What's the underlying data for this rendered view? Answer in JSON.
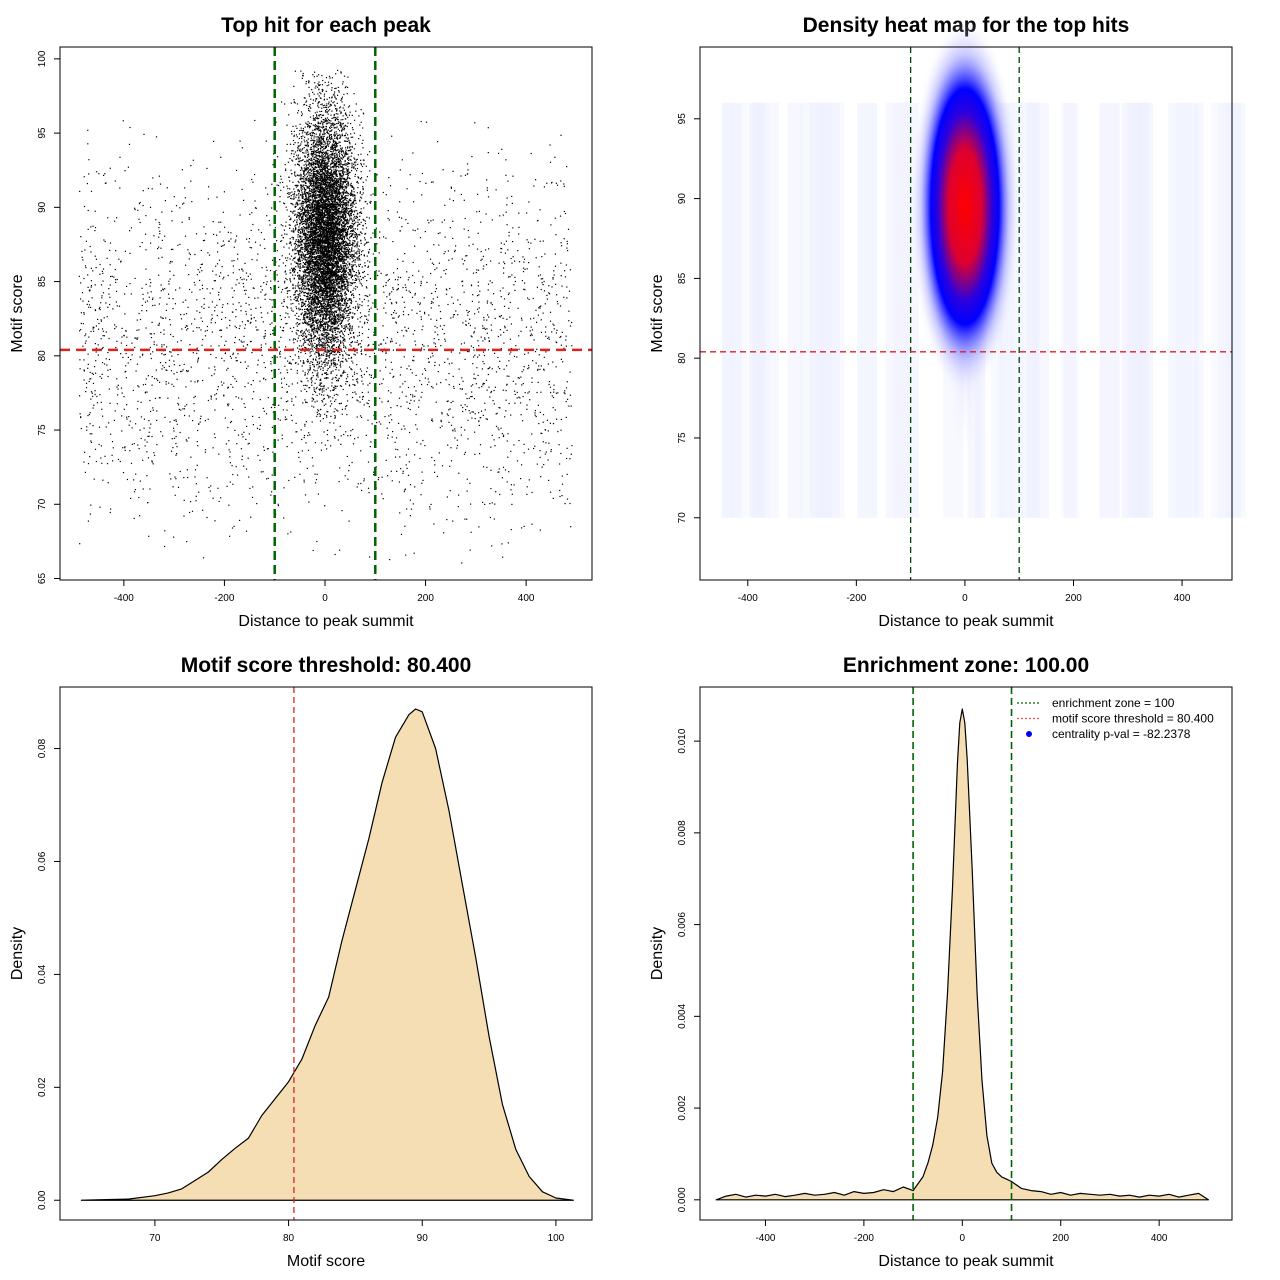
{
  "chart_data": [
    {
      "type": "scatter",
      "title": "Top hit for each peak",
      "xlabel": "Distance to peak summit",
      "ylabel": "Motif score",
      "xlim": [
        -527,
        531
      ],
      "ylim": [
        64.9,
        100.8
      ],
      "xticks": [
        -400,
        -200,
        0,
        200,
        400
      ],
      "yticks": [
        65,
        70,
        75,
        80,
        85,
        90,
        95,
        100
      ],
      "vlines": [
        -100,
        100
      ],
      "vline_color": "#006400",
      "hline": 80.4,
      "hline_color": "#dd2222",
      "point_color": "#000000",
      "distribution": {
        "central": {
          "n": 9000,
          "x_mean": 0,
          "x_sd": 30,
          "y_mean": 88,
          "y_sd": 4.2
        },
        "background": {
          "n": 3000,
          "x_range": [
            -490,
            490
          ],
          "y_mean": 81,
          "y_sd": 6
        }
      }
    },
    {
      "type": "heatmap",
      "title": "Density heat map for the top hits",
      "xlabel": "Distance to peak summit",
      "ylabel": "Motif score",
      "xlim": [
        -488,
        492
      ],
      "ylim": [
        66.1,
        99.5
      ],
      "xticks": [
        -400,
        -200,
        0,
        200,
        400
      ],
      "yticks": [
        70,
        75,
        80,
        85,
        90,
        95
      ],
      "vlines": [
        -100,
        100
      ],
      "vline_color": "#004400",
      "hline": 80.4,
      "hline_color": "#dd2222",
      "peak": {
        "x": 0,
        "y": 89.5
      },
      "colors": [
        "#ffffff",
        "#0000ff",
        "#ff0000"
      ]
    },
    {
      "type": "area",
      "title": "Motif score threshold: 80.400",
      "xlabel": "Motif score",
      "ylabel": "Density",
      "xlim": [
        62.9,
        102.7
      ],
      "ylim": [
        -0.0035,
        0.0909
      ],
      "xticks": [
        70,
        80,
        90,
        100
      ],
      "yticks": [
        0.0,
        0.02,
        0.04,
        0.06,
        0.08
      ],
      "ytick_labels": [
        "0.00",
        "0.02",
        "0.04",
        "0.06",
        "0.08"
      ],
      "vline": 80.4,
      "vline_color": "#dd2222",
      "fill": "#f5deb3",
      "x": [
        64.5,
        66,
        68,
        70,
        71,
        72,
        73,
        74,
        75,
        76,
        77,
        78,
        79,
        80,
        81,
        82,
        83,
        84,
        85,
        86,
        87,
        88,
        89,
        89.5,
        90,
        91,
        92,
        93,
        94,
        95,
        96,
        97,
        98,
        99,
        100,
        101.3
      ],
      "y": [
        0,
        0.0001,
        0.0002,
        0.0008,
        0.0013,
        0.002,
        0.0035,
        0.005,
        0.0072,
        0.0092,
        0.011,
        0.015,
        0.018,
        0.021,
        0.025,
        0.031,
        0.036,
        0.046,
        0.055,
        0.064,
        0.074,
        0.082,
        0.086,
        0.087,
        0.0865,
        0.08,
        0.069,
        0.056,
        0.043,
        0.029,
        0.017,
        0.009,
        0.0042,
        0.0015,
        0.0004,
        0
      ]
    },
    {
      "type": "area",
      "title": "Enrichment zone: 100.00",
      "xlabel": "Distance to peak summit",
      "ylabel": "Density",
      "xlim": [
        -533,
        548
      ],
      "ylim": [
        -0.00044,
        0.01118
      ],
      "xticks": [
        -400,
        -200,
        0,
        200,
        400
      ],
      "yticks": [
        0,
        0.002,
        0.004,
        0.006,
        0.008,
        0.01
      ],
      "ytick_labels": [
        "0.000",
        "0.002",
        "0.004",
        "0.006",
        "0.008",
        "0.010"
      ],
      "vlines": [
        -100,
        100
      ],
      "vline_color": "#006400",
      "fill": "#f5deb3",
      "x": [
        -500,
        -480,
        -460,
        -440,
        -420,
        -400,
        -380,
        -360,
        -340,
        -320,
        -300,
        -280,
        -260,
        -240,
        -220,
        -200,
        -180,
        -160,
        -140,
        -120,
        -100,
        -80,
        -70,
        -60,
        -50,
        -40,
        -30,
        -20,
        -10,
        -5,
        0,
        5,
        10,
        20,
        30,
        40,
        50,
        60,
        70,
        80,
        90,
        100,
        120,
        140,
        160,
        180,
        200,
        220,
        240,
        260,
        280,
        300,
        320,
        340,
        360,
        380,
        400,
        420,
        440,
        460,
        480,
        500
      ],
      "y": [
        0,
        8e-05,
        0.00012,
        6e-05,
        0.0001,
        8e-05,
        0.00012,
        7e-05,
        0.0001,
        0.00014,
        0.0001,
        0.00012,
        0.00016,
        0.0001,
        0.00018,
        0.00014,
        0.00016,
        0.00022,
        0.00018,
        0.00028,
        0.0002,
        0.0005,
        0.0008,
        0.0012,
        0.0018,
        0.0028,
        0.0045,
        0.0068,
        0.0095,
        0.0104,
        0.0107,
        0.0104,
        0.0096,
        0.0072,
        0.0045,
        0.0026,
        0.0014,
        0.0008,
        0.0006,
        0.0005,
        0.00045,
        0.0004,
        0.00025,
        0.0002,
        0.00018,
        0.00012,
        0.00016,
        0.0001,
        0.00014,
        0.00012,
        0.0001,
        0.00012,
        8e-05,
        0.0001,
        6e-05,
        0.0001,
        8e-05,
        0.00012,
        6e-05,
        0.0001,
        0.00014,
        0
      ]
    }
  ],
  "legend": {
    "items": [
      {
        "label": "enrichment zone = 100",
        "color": "#006400",
        "style": "dotted-line"
      },
      {
        "label": "motif score threshold = 80.400",
        "color": "#ff4444",
        "style": "dotted-line"
      },
      {
        "label": "centrality p-val = -82.2378",
        "color": "#0000ff",
        "style": "point"
      }
    ]
  }
}
